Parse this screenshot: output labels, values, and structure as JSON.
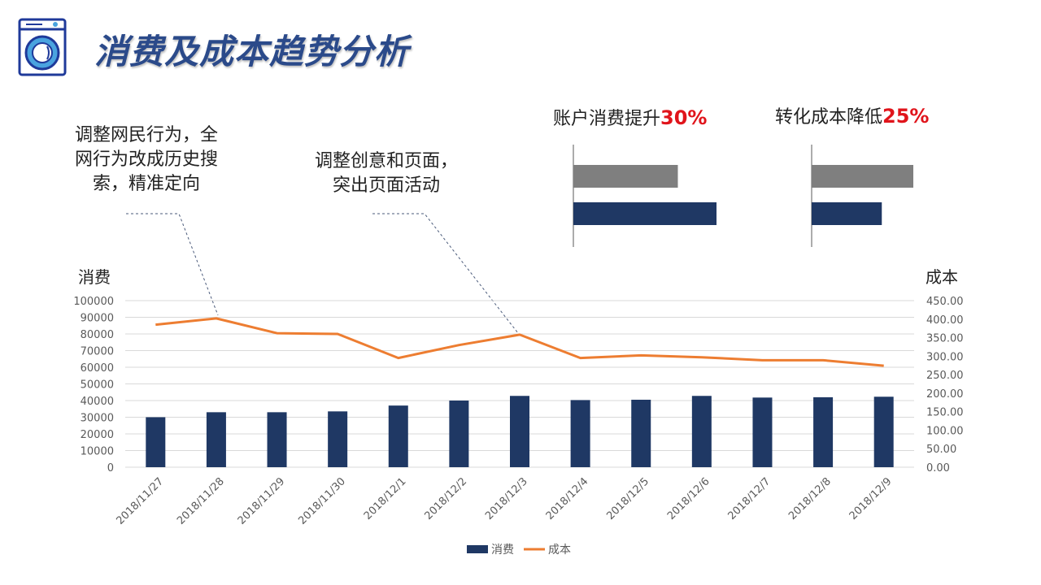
{
  "header": {
    "title": "消费及成本趋势分析",
    "logo_icon": "washing-machine-icon"
  },
  "annotations": [
    {
      "lines": [
        "调整网民行为，全",
        "网行为改成历史搜",
        "索，精准定向"
      ]
    },
    {
      "lines": [
        "调整创意和页面，",
        "突出页面活动"
      ]
    }
  ],
  "kpis": [
    {
      "label": "账户消费提升",
      "value": "30%",
      "before": 0.73,
      "after": 1.0
    },
    {
      "label": "转化成本降低",
      "value": "25%",
      "before": 1.0,
      "after": 0.69
    }
  ],
  "colors": {
    "bar": "#1f3864",
    "line": "#ed7d31",
    "kpi_before": "#7f7f7f",
    "kpi_after": "#1f3864",
    "highlight": "#e0141b"
  },
  "chart_data": {
    "type": "bar+line",
    "categories": [
      "2018/11/27",
      "2018/11/28",
      "2018/11/29",
      "2018/11/30",
      "2018/12/1",
      "2018/12/2",
      "2018/12/3",
      "2018/12/4",
      "2018/12/5",
      "2018/12/6",
      "2018/12/7",
      "2018/12/8",
      "2018/12/9"
    ],
    "series": [
      {
        "name": "消费",
        "type": "bar",
        "axis": "left",
        "values": [
          30000,
          33000,
          33000,
          33500,
          37000,
          40000,
          42800,
          40300,
          40500,
          42800,
          41800,
          42000,
          42300
        ]
      },
      {
        "name": "成本",
        "type": "line",
        "axis": "right",
        "values": [
          385,
          402,
          362,
          360,
          295,
          330,
          358,
          295,
          302,
          297,
          289,
          289,
          274
        ]
      }
    ],
    "ylabel_left": "消费",
    "ylabel_right": "成本",
    "ylim_left": [
      0,
      100000
    ],
    "ylim_right": [
      0,
      450
    ],
    "yticks_left": [
      "0",
      "10000",
      "20000",
      "30000",
      "40000",
      "50000",
      "60000",
      "70000",
      "80000",
      "90000",
      "100000"
    ],
    "yticks_right": [
      "0.00",
      "50.00",
      "100.00",
      "150.00",
      "200.00",
      "250.00",
      "300.00",
      "350.00",
      "400.00",
      "450.00"
    ],
    "grid": true,
    "legend": "bottom"
  }
}
